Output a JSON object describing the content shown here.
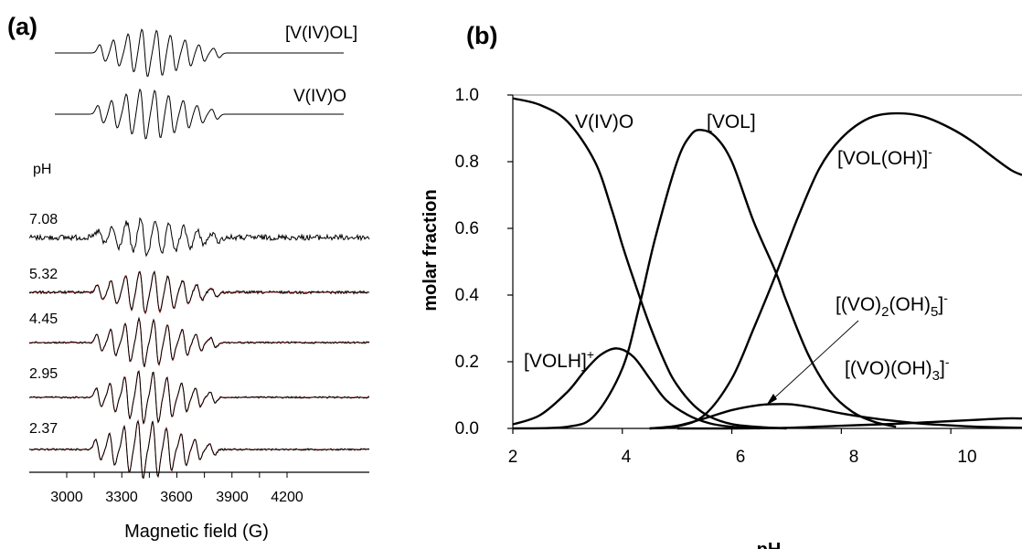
{
  "panel_a": {
    "label": "(a)",
    "sim_labels": [
      "[V(IV)OL]",
      "V(IV)O"
    ],
    "ph_header": "pH",
    "ph_values": [
      "7.08",
      "5.32",
      "4.45",
      "2.95",
      "2.37"
    ],
    "xlabel": "Magnetic field (G)",
    "x_ticks": [
      "3000",
      "3300",
      "3600",
      "3900",
      "4200"
    ]
  },
  "chart_data": {
    "type": "line",
    "title": "",
    "panel_label": "(b)",
    "xlabel": "pH",
    "ylabel": "molar fraction",
    "xlim": [
      2,
      11.3
    ],
    "ylim": [
      0,
      1.0
    ],
    "x_ticks": [
      2,
      4,
      6,
      8,
      10
    ],
    "y_ticks": [
      "0.0",
      "0.2",
      "0.4",
      "0.6",
      "0.8",
      "1.0"
    ],
    "x_tick_labels": [
      "2",
      "4",
      "6",
      "8",
      "10"
    ],
    "series": [
      {
        "name": "V(IV)O",
        "x": [
          2.0,
          2.5,
          3.0,
          3.5,
          3.8,
          4.0,
          4.2,
          4.5,
          4.8,
          5.0,
          5.3,
          5.6,
          6.0,
          6.5,
          7.0
        ],
        "y": [
          0.99,
          0.97,
          0.92,
          0.8,
          0.66,
          0.55,
          0.45,
          0.31,
          0.19,
          0.13,
          0.07,
          0.035,
          0.013,
          0.004,
          0.0
        ]
      },
      {
        "name": "[VOLH]+",
        "x": [
          2.0,
          2.5,
          3.0,
          3.3,
          3.6,
          3.9,
          4.2,
          4.5,
          4.8,
          5.2,
          5.6,
          6.0,
          6.5
        ],
        "y": [
          0.012,
          0.04,
          0.11,
          0.17,
          0.22,
          0.24,
          0.215,
          0.15,
          0.085,
          0.04,
          0.015,
          0.005,
          0.0
        ]
      },
      {
        "name": "[VOL]",
        "x": [
          2.0,
          3.0,
          3.5,
          4.0,
          4.3,
          4.6,
          5.0,
          5.25,
          5.45,
          5.7,
          6.0,
          6.4,
          6.8,
          7.0,
          7.4,
          7.8,
          8.2,
          8.6,
          9.0
        ],
        "y": [
          0.0,
          0.005,
          0.04,
          0.18,
          0.36,
          0.57,
          0.8,
          0.88,
          0.895,
          0.875,
          0.8,
          0.62,
          0.47,
          0.38,
          0.22,
          0.11,
          0.05,
          0.02,
          0.005
        ]
      },
      {
        "name": "[VOL(OH)]-",
        "x": [
          4.5,
          5.0,
          5.5,
          6.0,
          6.4,
          6.8,
          7.2,
          7.6,
          8.0,
          8.5,
          9.0,
          9.5,
          10.0,
          10.4,
          10.8,
          11.1,
          11.3
        ],
        "y": [
          0.0,
          0.006,
          0.04,
          0.15,
          0.3,
          0.46,
          0.63,
          0.78,
          0.87,
          0.93,
          0.945,
          0.935,
          0.9,
          0.86,
          0.81,
          0.775,
          0.76
        ]
      },
      {
        "name": "[(VO)2(OH)5]-",
        "x": [
          4.5,
          5.0,
          5.5,
          6.0,
          6.5,
          6.8,
          7.1,
          7.5,
          8.0,
          8.5,
          9.0,
          9.5,
          10.0,
          10.5,
          11.0,
          11.3
        ],
        "y": [
          0.0,
          0.008,
          0.03,
          0.055,
          0.07,
          0.073,
          0.072,
          0.062,
          0.045,
          0.032,
          0.022,
          0.014,
          0.009,
          0.005,
          0.003,
          0.002
        ]
      },
      {
        "name": "[(VO)(OH)3]-",
        "x": [
          5.0,
          6.0,
          7.0,
          8.0,
          9.0,
          10.0,
          10.5,
          11.0,
          11.3
        ],
        "y": [
          0.0,
          0.0,
          0.002,
          0.008,
          0.014,
          0.022,
          0.026,
          0.03,
          0.03
        ]
      }
    ],
    "labels": {
      "voo": "V(IV)O",
      "vol": "[VOL]",
      "volh_base": "[VOLH]",
      "volh_sup": "+",
      "voloh_base": "[VOL(OH)]",
      "voloh_sup": "-",
      "dimer_a": "[(VO)",
      "dimer_sub1": "2",
      "dimer_b": "(OH)",
      "dimer_sub2": "5",
      "dimer_c": "]",
      "dimer_sup": "-",
      "mono_a": "[(VO)(OH)",
      "mono_sub": "3",
      "mono_b": "]",
      "mono_sup": "-"
    },
    "legend": "none",
    "grid": false
  }
}
